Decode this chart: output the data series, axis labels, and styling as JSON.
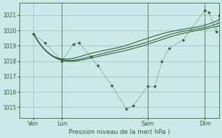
{
  "bg_color": "#cce8e8",
  "grid_color": "#99bbbb",
  "line_color": "#2d6030",
  "title": "Pression niveau de la mer( hPa )",
  "ylim": [
    1014.3,
    1021.8
  ],
  "yticks": [
    1015,
    1016,
    1017,
    1018,
    1019,
    1020,
    1021
  ],
  "xlim": [
    0,
    14
  ],
  "day_positions": [
    1,
    3,
    9,
    13
  ],
  "day_labels": [
    "Ven",
    "Lun",
    "Sam",
    "Dim"
  ],
  "vlines_x": [
    3,
    9,
    13
  ],
  "dotted_line": {
    "x": [
      1,
      1.8,
      3,
      3.8,
      4.2,
      5.0,
      5.5,
      6.5,
      7.5,
      8.0,
      9.0,
      9.5,
      10.0,
      10.5,
      11.5,
      13.0,
      13.3,
      13.8,
      14.0
    ],
    "y": [
      1019.8,
      1019.2,
      1018.0,
      1019.1,
      1019.2,
      1018.3,
      1017.7,
      1016.4,
      1014.9,
      1015.1,
      1016.35,
      1016.35,
      1018.0,
      1018.85,
      1019.4,
      1021.3,
      1021.2,
      1019.9,
      1021.0
    ]
  },
  "smooth_line1": {
    "x": [
      1,
      3,
      5,
      7,
      9,
      11,
      13,
      14
    ],
    "y": [
      1019.8,
      1018.05,
      1018.2,
      1018.6,
      1019.1,
      1019.7,
      1020.1,
      1020.3
    ]
  },
  "smooth_line2": {
    "x": [
      1,
      3,
      5,
      7,
      9,
      11,
      13,
      14
    ],
    "y": [
      1019.8,
      1018.1,
      1018.3,
      1018.75,
      1019.25,
      1019.85,
      1020.2,
      1020.5
    ]
  },
  "smooth_line3": {
    "x": [
      1,
      3,
      5,
      7,
      9,
      11,
      13,
      14
    ],
    "y": [
      1019.8,
      1018.15,
      1018.5,
      1018.9,
      1019.5,
      1020.0,
      1020.35,
      1020.7
    ]
  }
}
